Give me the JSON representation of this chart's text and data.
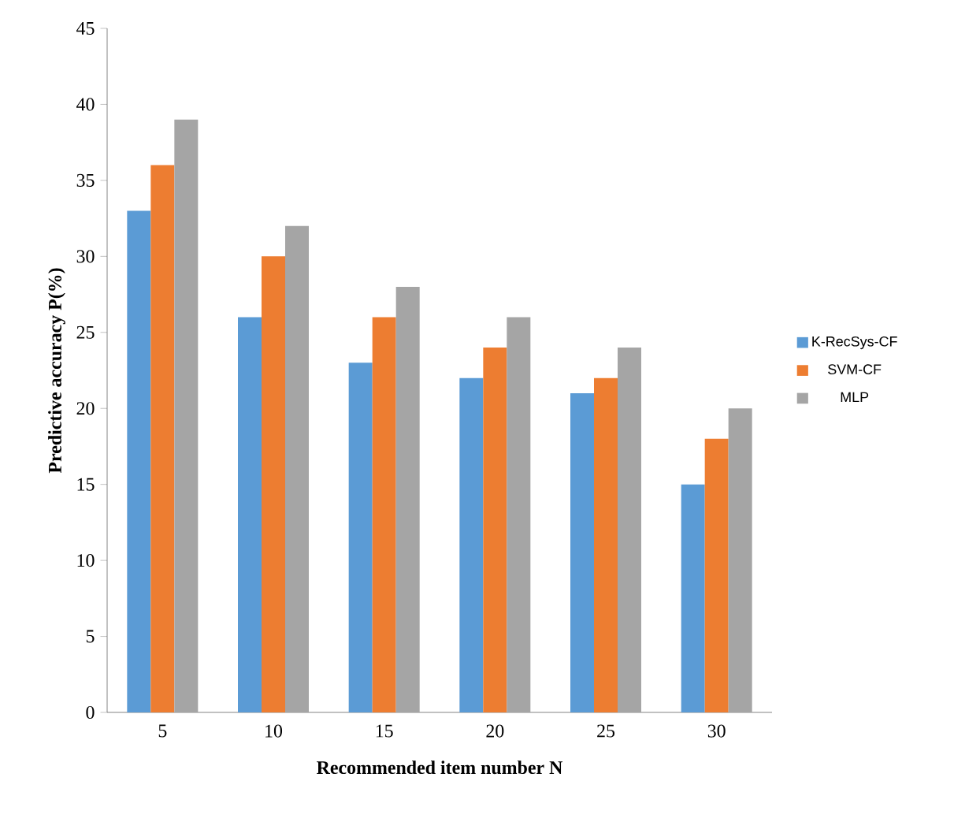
{
  "chart_data": {
    "type": "bar",
    "xlabel": "Recommended item number N",
    "ylabel": "Predictive accuracy P(%)",
    "categories": [
      "5",
      "10",
      "15",
      "20",
      "25",
      "30"
    ],
    "series": [
      {
        "name": "K-RecSys-CF",
        "color": "#5b9bd5",
        "values": [
          33,
          26,
          23,
          22,
          21,
          15
        ]
      },
      {
        "name": "SVM-CF",
        "color": "#ed7d31",
        "values": [
          36,
          30,
          26,
          24,
          22,
          18
        ]
      },
      {
        "name": "MLP",
        "color": "#a5a5a5",
        "values": [
          39,
          32,
          28,
          26,
          24,
          20
        ]
      }
    ],
    "ylim": [
      0,
      45
    ],
    "yticks": [
      0,
      5,
      10,
      15,
      20,
      25,
      30,
      35,
      40,
      45
    ],
    "grid": false,
    "legend": "right"
  }
}
